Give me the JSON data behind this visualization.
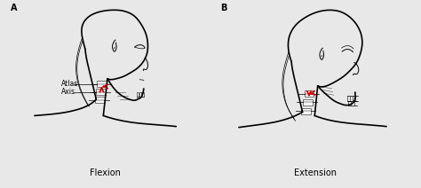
{
  "panel_A_label": "A",
  "panel_B_label": "B",
  "label_flexion": "Flexion",
  "label_extension": "Extension",
  "label_atlas": "Atlas",
  "label_axis": "Axis",
  "bg_color": "#e8e8e8",
  "panel_bg": "#ffffff",
  "text_color": "#000000",
  "arrow_color": "#cc0000",
  "fig_width": 4.74,
  "fig_height": 2.12,
  "dpi": 100
}
